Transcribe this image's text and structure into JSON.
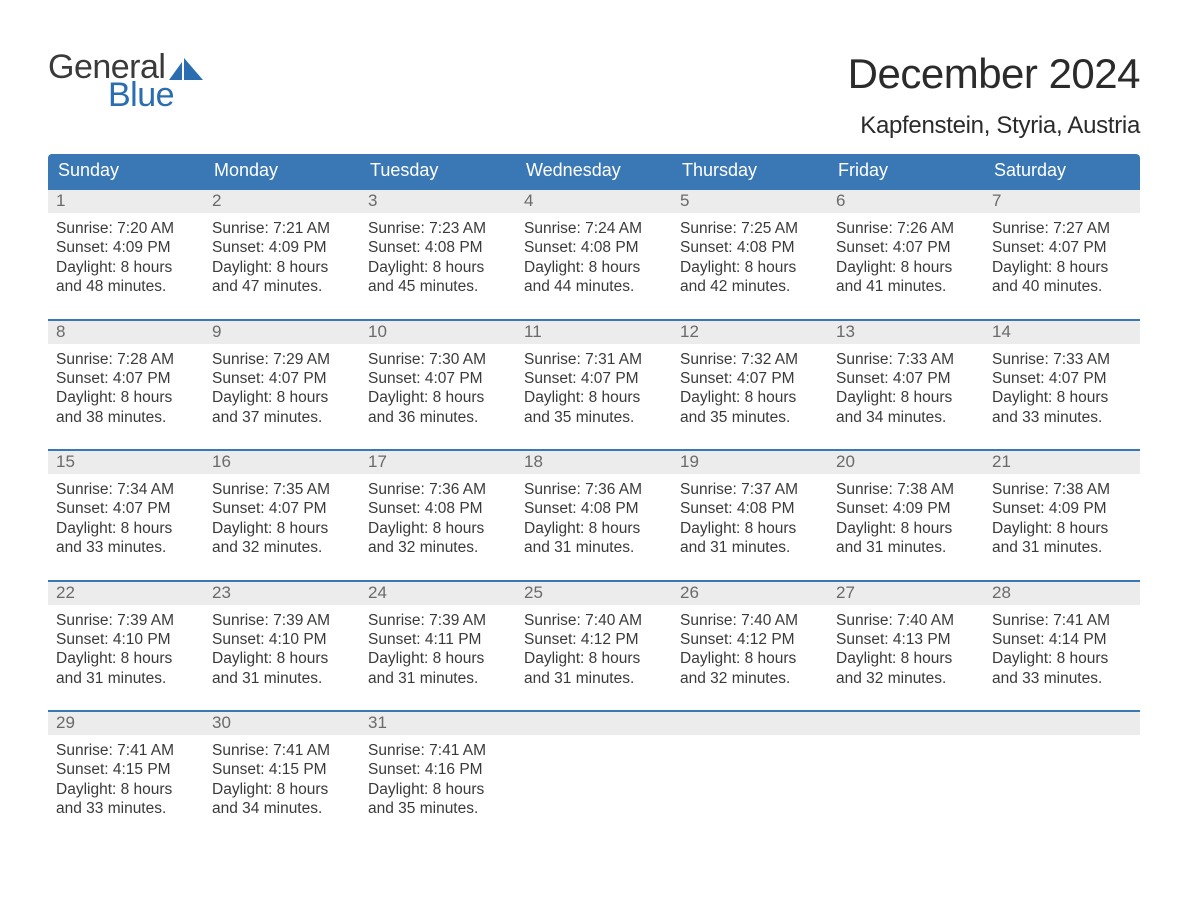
{
  "brand": {
    "word1": "General",
    "word2": "Blue",
    "text_color": "#3a3a3a",
    "accent_color": "#2a6db0"
  },
  "title": "December 2024",
  "location": "Kapfenstein, Styria, Austria",
  "colors": {
    "header_bg": "#3a78b5",
    "header_text": "#ffffff",
    "daynum_bg": "#ececec",
    "daynum_text": "#6a6a6a",
    "body_text": "#3a3a3a",
    "row_border": "#3a78b5",
    "page_bg": "#ffffff"
  },
  "weekdays": [
    "Sunday",
    "Monday",
    "Tuesday",
    "Wednesday",
    "Thursday",
    "Friday",
    "Saturday"
  ],
  "weeks": [
    [
      {
        "n": "1",
        "sunrise": "7:20 AM",
        "sunset": "4:09 PM",
        "dl1": "8 hours",
        "dl2": "and 48 minutes."
      },
      {
        "n": "2",
        "sunrise": "7:21 AM",
        "sunset": "4:09 PM",
        "dl1": "8 hours",
        "dl2": "and 47 minutes."
      },
      {
        "n": "3",
        "sunrise": "7:23 AM",
        "sunset": "4:08 PM",
        "dl1": "8 hours",
        "dl2": "and 45 minutes."
      },
      {
        "n": "4",
        "sunrise": "7:24 AM",
        "sunset": "4:08 PM",
        "dl1": "8 hours",
        "dl2": "and 44 minutes."
      },
      {
        "n": "5",
        "sunrise": "7:25 AM",
        "sunset": "4:08 PM",
        "dl1": "8 hours",
        "dl2": "and 42 minutes."
      },
      {
        "n": "6",
        "sunrise": "7:26 AM",
        "sunset": "4:07 PM",
        "dl1": "8 hours",
        "dl2": "and 41 minutes."
      },
      {
        "n": "7",
        "sunrise": "7:27 AM",
        "sunset": "4:07 PM",
        "dl1": "8 hours",
        "dl2": "and 40 minutes."
      }
    ],
    [
      {
        "n": "8",
        "sunrise": "7:28 AM",
        "sunset": "4:07 PM",
        "dl1": "8 hours",
        "dl2": "and 38 minutes."
      },
      {
        "n": "9",
        "sunrise": "7:29 AM",
        "sunset": "4:07 PM",
        "dl1": "8 hours",
        "dl2": "and 37 minutes."
      },
      {
        "n": "10",
        "sunrise": "7:30 AM",
        "sunset": "4:07 PM",
        "dl1": "8 hours",
        "dl2": "and 36 minutes."
      },
      {
        "n": "11",
        "sunrise": "7:31 AM",
        "sunset": "4:07 PM",
        "dl1": "8 hours",
        "dl2": "and 35 minutes."
      },
      {
        "n": "12",
        "sunrise": "7:32 AM",
        "sunset": "4:07 PM",
        "dl1": "8 hours",
        "dl2": "and 35 minutes."
      },
      {
        "n": "13",
        "sunrise": "7:33 AM",
        "sunset": "4:07 PM",
        "dl1": "8 hours",
        "dl2": "and 34 minutes."
      },
      {
        "n": "14",
        "sunrise": "7:33 AM",
        "sunset": "4:07 PM",
        "dl1": "8 hours",
        "dl2": "and 33 minutes."
      }
    ],
    [
      {
        "n": "15",
        "sunrise": "7:34 AM",
        "sunset": "4:07 PM",
        "dl1": "8 hours",
        "dl2": "and 33 minutes."
      },
      {
        "n": "16",
        "sunrise": "7:35 AM",
        "sunset": "4:07 PM",
        "dl1": "8 hours",
        "dl2": "and 32 minutes."
      },
      {
        "n": "17",
        "sunrise": "7:36 AM",
        "sunset": "4:08 PM",
        "dl1": "8 hours",
        "dl2": "and 32 minutes."
      },
      {
        "n": "18",
        "sunrise": "7:36 AM",
        "sunset": "4:08 PM",
        "dl1": "8 hours",
        "dl2": "and 31 minutes."
      },
      {
        "n": "19",
        "sunrise": "7:37 AM",
        "sunset": "4:08 PM",
        "dl1": "8 hours",
        "dl2": "and 31 minutes."
      },
      {
        "n": "20",
        "sunrise": "7:38 AM",
        "sunset": "4:09 PM",
        "dl1": "8 hours",
        "dl2": "and 31 minutes."
      },
      {
        "n": "21",
        "sunrise": "7:38 AM",
        "sunset": "4:09 PM",
        "dl1": "8 hours",
        "dl2": "and 31 minutes."
      }
    ],
    [
      {
        "n": "22",
        "sunrise": "7:39 AM",
        "sunset": "4:10 PM",
        "dl1": "8 hours",
        "dl2": "and 31 minutes."
      },
      {
        "n": "23",
        "sunrise": "7:39 AM",
        "sunset": "4:10 PM",
        "dl1": "8 hours",
        "dl2": "and 31 minutes."
      },
      {
        "n": "24",
        "sunrise": "7:39 AM",
        "sunset": "4:11 PM",
        "dl1": "8 hours",
        "dl2": "and 31 minutes."
      },
      {
        "n": "25",
        "sunrise": "7:40 AM",
        "sunset": "4:12 PM",
        "dl1": "8 hours",
        "dl2": "and 31 minutes."
      },
      {
        "n": "26",
        "sunrise": "7:40 AM",
        "sunset": "4:12 PM",
        "dl1": "8 hours",
        "dl2": "and 32 minutes."
      },
      {
        "n": "27",
        "sunrise": "7:40 AM",
        "sunset": "4:13 PM",
        "dl1": "8 hours",
        "dl2": "and 32 minutes."
      },
      {
        "n": "28",
        "sunrise": "7:41 AM",
        "sunset": "4:14 PM",
        "dl1": "8 hours",
        "dl2": "and 33 minutes."
      }
    ],
    [
      {
        "n": "29",
        "sunrise": "7:41 AM",
        "sunset": "4:15 PM",
        "dl1": "8 hours",
        "dl2": "and 33 minutes."
      },
      {
        "n": "30",
        "sunrise": "7:41 AM",
        "sunset": "4:15 PM",
        "dl1": "8 hours",
        "dl2": "and 34 minutes."
      },
      {
        "n": "31",
        "sunrise": "7:41 AM",
        "sunset": "4:16 PM",
        "dl1": "8 hours",
        "dl2": "and 35 minutes."
      },
      null,
      null,
      null,
      null
    ]
  ],
  "labels": {
    "sunrise": "Sunrise: ",
    "sunset": "Sunset: ",
    "daylight": "Daylight: "
  }
}
